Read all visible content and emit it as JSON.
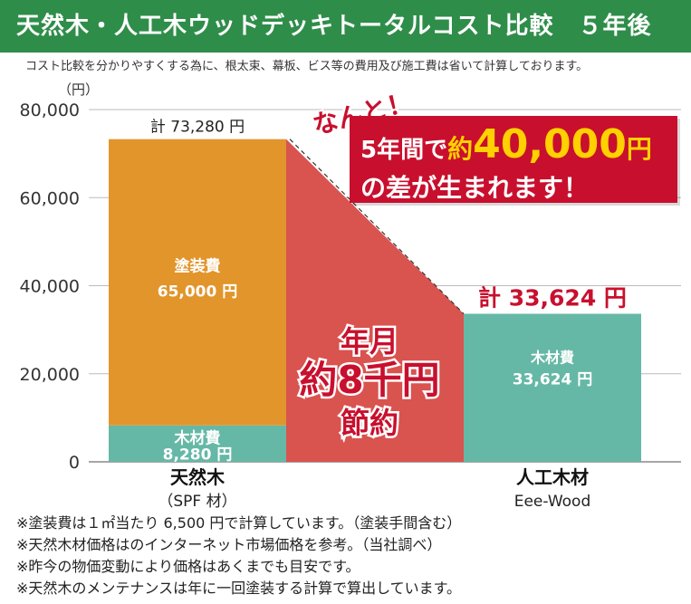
{
  "header": {
    "title": "天然木・人工木ウッドデッキトータルコスト比較　５年後"
  },
  "subnote": "コスト比較を分かりやすくする為に、根太束、幕板、ビス等の費用及び施工費は省いて計算しております。",
  "unit_label": "（円）",
  "callout": {
    "exclaim": "なんと！",
    "line1_a": "5年間で",
    "line1_b": "約",
    "line1_c": "40,000",
    "line1_d": "円",
    "line2": "の差が生まれます！"
  },
  "chart_data": {
    "type": "bar",
    "stacked": true,
    "ylim": [
      0,
      80000
    ],
    "yticks": [
      "0",
      "20,000",
      "40,000",
      "60,000",
      "80,000"
    ],
    "ytick_values": [
      0,
      20000,
      40000,
      60000,
      80000
    ],
    "grid": true,
    "categories": [
      {
        "name": "天然木",
        "sub": "（SPF 材）"
      },
      {
        "name": "人工木材",
        "sub": "Eee-Wood"
      }
    ],
    "series": [
      {
        "name": "木材費",
        "values": [
          8280,
          33624
        ],
        "labels": [
          "8,280 円",
          "33,624 円"
        ]
      },
      {
        "name": "塗装費",
        "values": [
          65000,
          0
        ],
        "labels": [
          "65,000 円",
          ""
        ]
      }
    ],
    "totals": [
      "計 73,280 円",
      "計 33,624 円"
    ],
    "total_values": [
      73280,
      33624
    ],
    "savings": {
      "line1": "年月",
      "line2": "約8千円",
      "line3": "節約"
    },
    "colors": {
      "wood": "#66b8a6",
      "paint": "#e2952b",
      "savings": "#d9534f",
      "total_red": "#c8102e"
    }
  },
  "notes": [
    "※塗装費は１㎡当たり 6,500 円で計算しています。（塗装手間含む）",
    "※天然木材価格はのインターネット市場価格を参考。（当社調べ）",
    "※昨今の物価変動により価格はあくまでも目安です。",
    "※天然木のメンテナンスは年に一回塗装する計算で算出しています。"
  ]
}
